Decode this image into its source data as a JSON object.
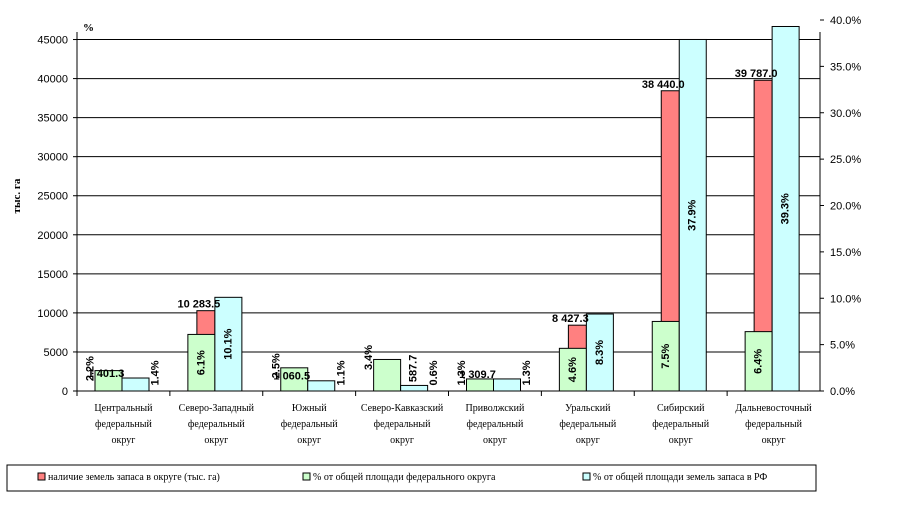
{
  "chart_data": {
    "type": "bar",
    "ylabel_left": "тыс. га",
    "ylabel_right": "%",
    "ylim_left": [
      0,
      47500
    ],
    "ylim_right": [
      0,
      40
    ],
    "left_ticks": [
      "0",
      "5000",
      "10000",
      "15000",
      "20000",
      "25000",
      "30000",
      "35000",
      "40000",
      "45000"
    ],
    "right_ticks": [
      "0.0%",
      "5.0%",
      "10.0%",
      "15.0%",
      "20.0%",
      "25.0%",
      "30.0%",
      "35.0%",
      "40.0%"
    ],
    "grid": true,
    "legend_position": "bottom",
    "categories": [
      [
        "Центральный",
        "федеральный",
        "округ"
      ],
      [
        "Северо-Западный",
        "федеральный",
        "округ"
      ],
      [
        "Южный",
        "федеральный",
        "округ"
      ],
      [
        "Северо-Кавказский",
        "федеральный",
        "округ"
      ],
      [
        "Приволжский",
        "федеральный",
        "округ"
      ],
      [
        "Уральский",
        "федеральный",
        "округ"
      ],
      [
        "Сибирский",
        "федеральный",
        "округ"
      ],
      [
        "Дальневосточный",
        "федеральный",
        "округ"
      ]
    ],
    "series": [
      {
        "name": "наличие земель запаса в округе (тыс. га)",
        "axis": "left",
        "color": "#ff8080",
        "values": [
          1401.3,
          10283.5,
          1060.5,
          587.7,
          1309.7,
          8427.3,
          38440.0,
          39787.0
        ],
        "labels": [
          "1 401.3",
          "10 283.5",
          "1 060.5",
          "587.7",
          "1 309.7",
          "8 427.3",
          "38 440.0",
          "39 787.0"
        ]
      },
      {
        "name": "% от общей площади федерального округа",
        "axis": "right",
        "color": "#ccffcc",
        "values": [
          2.2,
          6.1,
          2.5,
          3.4,
          1.3,
          4.6,
          7.5,
          6.4
        ],
        "labels": [
          "2.2%",
          "6.1%",
          "2.5%",
          "3.4%",
          "1.3%",
          "4.6%",
          "7.5%",
          "6.4%"
        ]
      },
      {
        "name": "% от общей площади земель запаса в РФ",
        "axis": "right",
        "color": "#ccffff",
        "values": [
          1.4,
          10.1,
          1.1,
          0.6,
          1.3,
          8.3,
          37.9,
          39.3
        ],
        "labels": [
          "1.4%",
          "10.1%",
          "1.1%",
          "0.6%",
          "1.3%",
          "8.3%",
          "37.9%",
          "39.3%"
        ]
      }
    ]
  }
}
